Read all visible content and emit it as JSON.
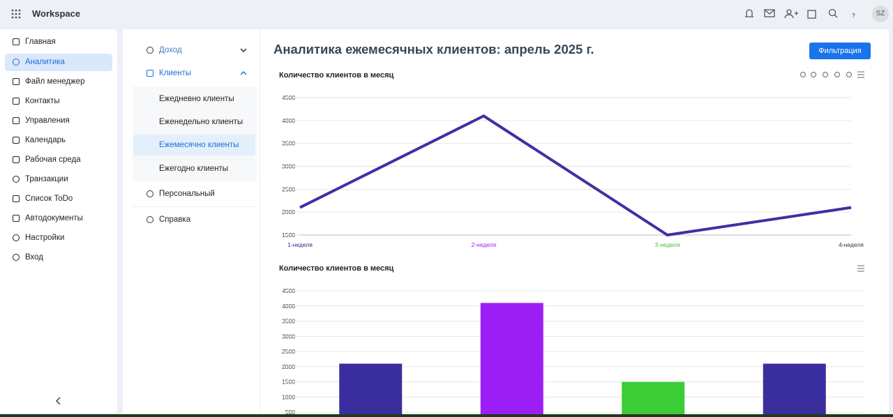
{
  "header": {
    "brand": "Workspace",
    "avatar": "SZ"
  },
  "sidebar": {
    "items": [
      "Главная",
      "Аналитика",
      "Файл менеджер",
      "Контакты",
      "Управления",
      "Календарь",
      "Рабочая среда",
      "Транзакции",
      "Список ToDo",
      "Автодокументы",
      "Настройки",
      "Вход"
    ]
  },
  "submenu": {
    "income": "Доход",
    "clients": "Клиенты",
    "children": [
      "Ежедневно клиенты",
      "Еженедельно клиенты",
      "Ежемесячно клиенты",
      "Ежегодно клиенты"
    ],
    "personal": "Персональный",
    "help": "Справка"
  },
  "page": {
    "title": "Аналитика ежемесячных клиентов: апрель 2025 г.",
    "filter_button": "Фильтрация"
  },
  "chart_data": [
    {
      "type": "line",
      "title": "Количество клиентов в месяц",
      "categories": [
        "1-неделя",
        "2-неделя",
        "3-неделя",
        "4-неделя"
      ],
      "category_colors": [
        "#2a2a8c",
        "#9b1ff5",
        "#3cbf36",
        "#333333"
      ],
      "series": [
        {
          "color": "#3d31a3",
          "values": [
            2100,
            4100,
            1500,
            2100
          ]
        }
      ],
      "ylim": [
        1500,
        4500
      ],
      "yticks": [
        1500,
        2000,
        2500,
        3000,
        3500,
        4000,
        4500
      ],
      "grid": true
    },
    {
      "type": "bar",
      "title": "Количество клиентов в месяц",
      "values": [
        2100,
        4100,
        1500,
        2100
      ],
      "colors": [
        "#3a2e9e",
        "#9b1ff5",
        "#3ccc36",
        "#3a2e9e"
      ],
      "ylim": [
        0,
        4500
      ],
      "yticks": [
        500,
        1000,
        1500,
        2000,
        2500,
        3000,
        3500,
        4000,
        4500
      ],
      "grid": true
    }
  ]
}
